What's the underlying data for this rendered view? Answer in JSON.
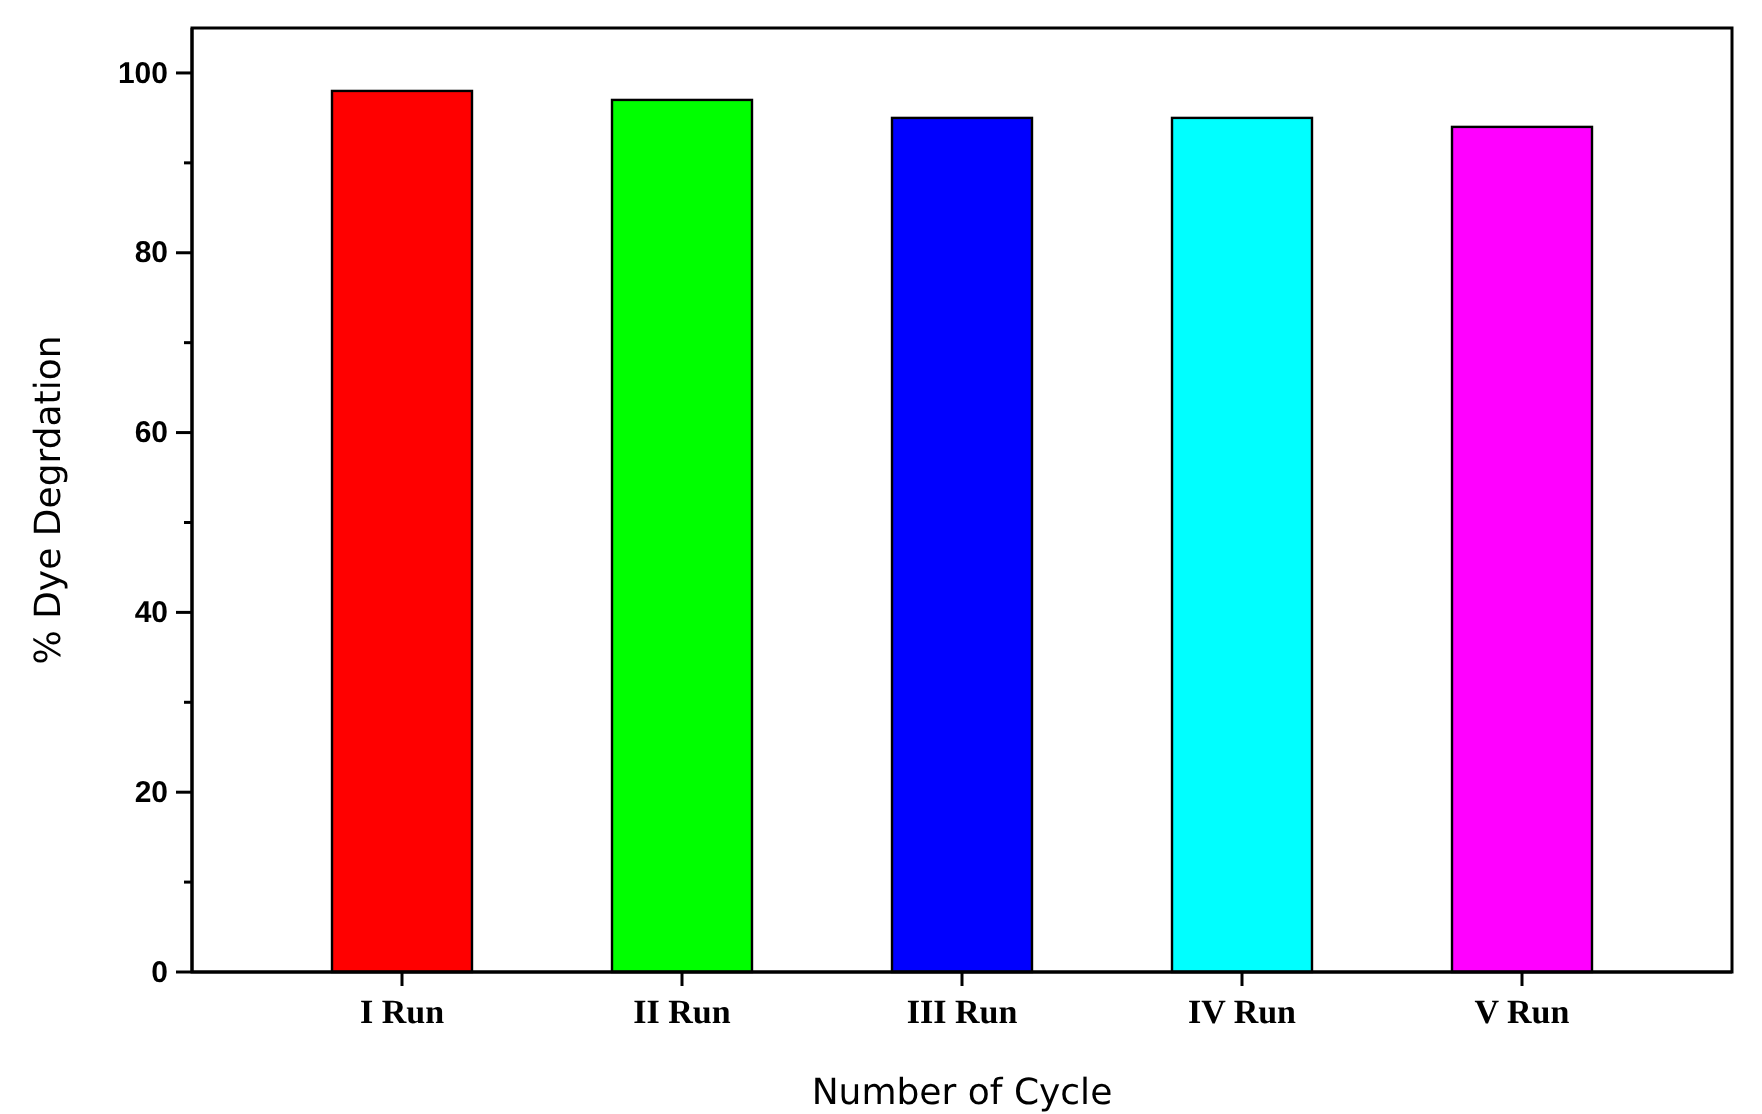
{
  "chart_data": {
    "type": "bar",
    "xlabel": "Number of Cycle",
    "ylabel": "% Dye Degrdation",
    "categories": [
      "I Run",
      "II Run",
      "III Run",
      "IV Run",
      "V Run"
    ],
    "values": [
      98,
      97,
      95,
      95,
      94
    ],
    "colors": [
      "#ff0000",
      "#00ff00",
      "#0000ff",
      "#00ffff",
      "#ff00ff"
    ],
    "ylim": [
      0,
      105
    ],
    "yticks": [
      0,
      {
        "value": 10,
        "label": null
      },
      20,
      {
        "value": 30,
        "label": null
      },
      40,
      {
        "value": 50,
        "label": null
      },
      60,
      {
        "value": 70,
        "label": null
      },
      80,
      {
        "value": 90,
        "label": null
      },
      100
    ],
    "grid": false,
    "legend": false
  }
}
